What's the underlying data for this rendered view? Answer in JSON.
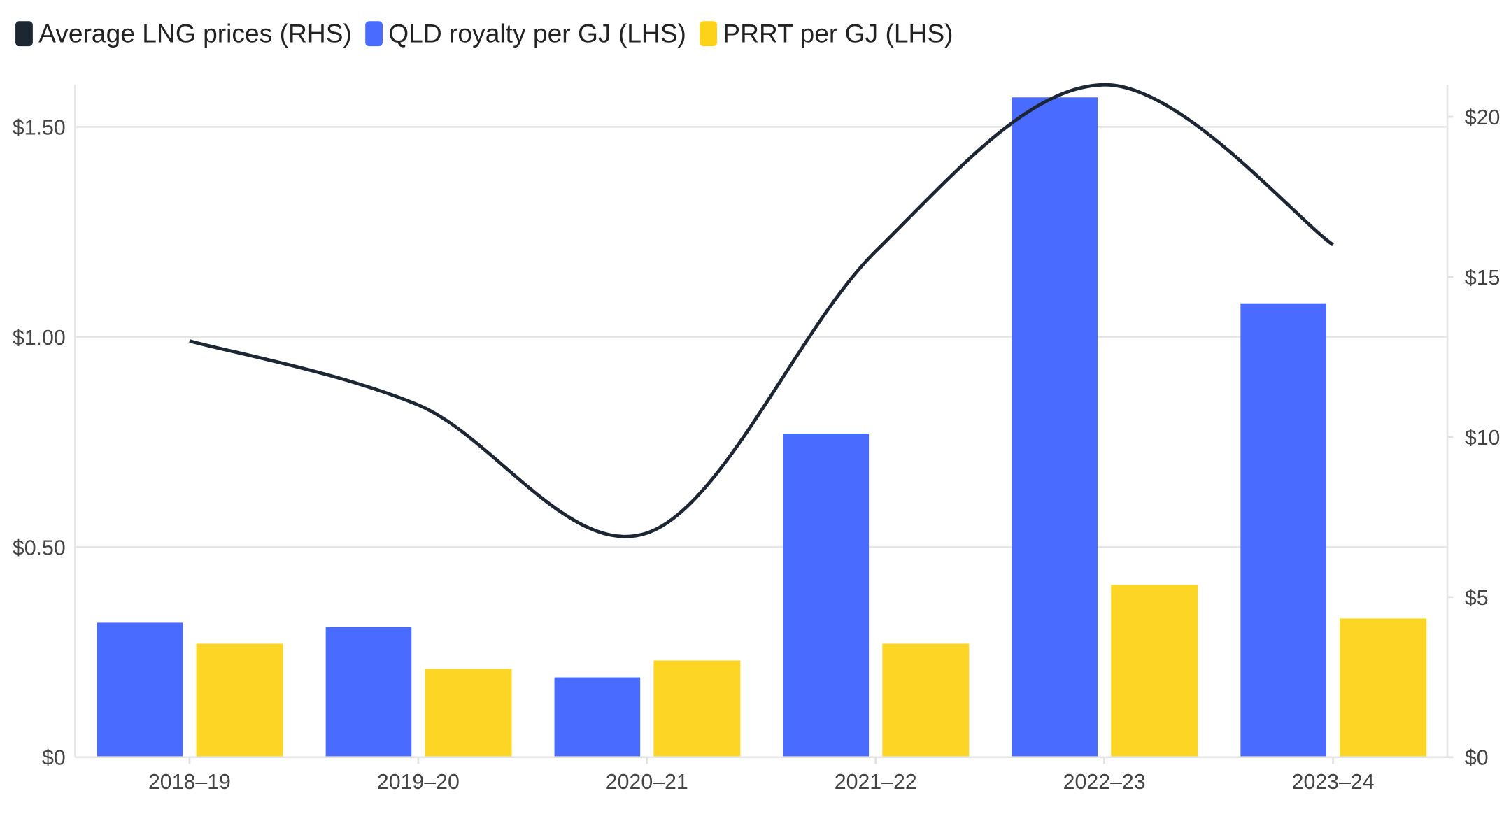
{
  "chart_data": {
    "type": "bar",
    "categories": [
      "2018–19",
      "2019–20",
      "2020–21",
      "2021–22",
      "2022–23",
      "2023–24"
    ],
    "series": [
      {
        "name": "Average LNG prices (RHS)",
        "type": "line",
        "axis": "right",
        "color": "#1c2733",
        "values": [
          13.0,
          11.0,
          7.0,
          15.8,
          21.0,
          16.0
        ]
      },
      {
        "name": "QLD royalty per GJ (LHS)",
        "type": "bar",
        "axis": "left",
        "color": "#4a6bff",
        "values": [
          0.32,
          0.31,
          0.19,
          0.77,
          1.57,
          1.08
        ]
      },
      {
        "name": "PRRT per GJ (LHS)",
        "type": "bar",
        "axis": "left",
        "color": "#fdd319",
        "values": [
          0.27,
          0.21,
          0.23,
          0.27,
          0.41,
          0.33
        ]
      }
    ],
    "left_axis": {
      "ticks": [
        0,
        0.5,
        1.0,
        1.5
      ],
      "tick_labels": [
        "$0",
        "$0.50",
        "$1.00",
        "$1.50"
      ],
      "ylim": [
        0,
        1.6
      ]
    },
    "right_axis": {
      "ticks": [
        0,
        5,
        10,
        15,
        20
      ],
      "tick_labels": [
        "$0",
        "$5",
        "$10",
        "$15",
        "$20"
      ],
      "ylim": [
        0,
        21
      ]
    },
    "grid": true,
    "legend": "top-left",
    "title": "",
    "xlabel": "",
    "ylabel": ""
  }
}
